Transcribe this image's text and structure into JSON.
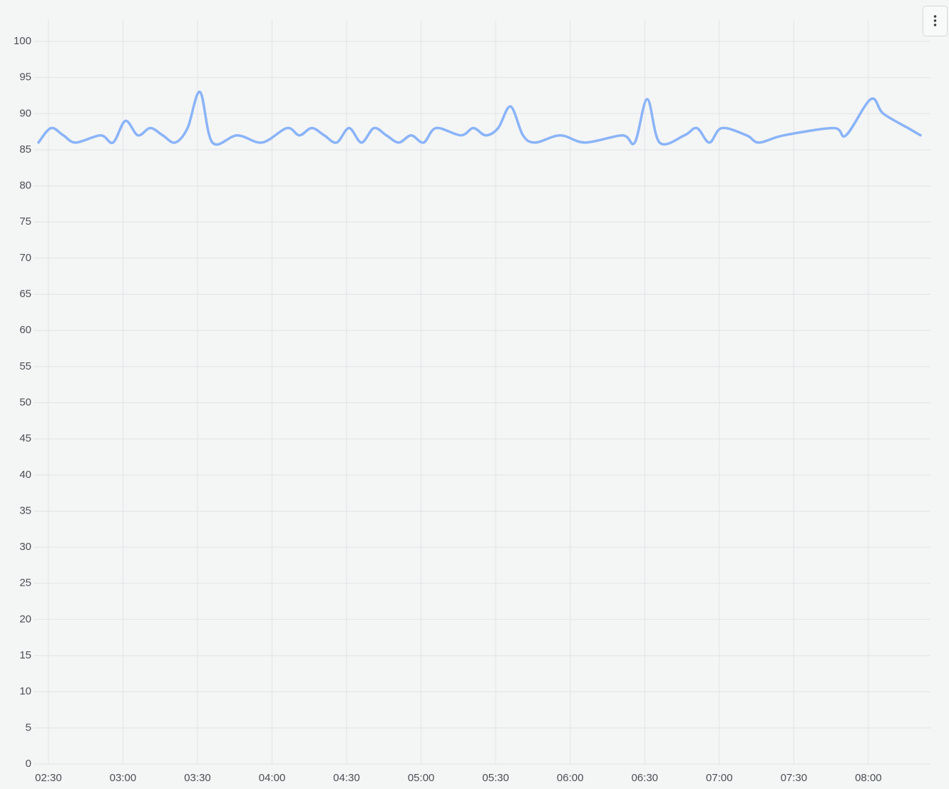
{
  "chart_data": {
    "type": "line",
    "x": [
      "02:26",
      "02:31",
      "02:36",
      "02:41",
      "02:51",
      "02:56",
      "03:01",
      "03:06",
      "03:11",
      "03:16",
      "03:21",
      "03:26",
      "03:31",
      "03:36",
      "03:46",
      "03:56",
      "04:06",
      "04:11",
      "04:16",
      "04:21",
      "04:26",
      "04:31",
      "04:36",
      "04:41",
      "04:46",
      "04:51",
      "04:56",
      "05:01",
      "05:06",
      "05:16",
      "05:21",
      "05:26",
      "05:31",
      "05:36",
      "05:41",
      "05:46",
      "05:56",
      "06:06",
      "06:21",
      "06:26",
      "06:31",
      "06:36",
      "06:46",
      "06:51",
      "06:56",
      "07:01",
      "07:11",
      "07:16",
      "07:26",
      "07:46",
      "07:51",
      "08:01",
      "08:06",
      "08:16",
      "08:21"
    ],
    "series": [
      {
        "color": "#8ab4f8",
        "values": [
          86,
          88,
          87,
          86,
          87,
          86,
          89,
          87,
          88,
          87,
          86,
          88,
          93,
          86,
          87,
          86,
          88,
          87,
          88,
          87,
          86,
          88,
          86,
          88,
          87,
          86,
          87,
          86,
          88,
          87,
          88,
          87,
          88,
          91,
          87,
          86,
          87,
          86,
          87,
          86,
          92,
          86,
          87,
          88,
          86,
          88,
          87,
          86,
          87,
          88,
          87,
          92,
          90,
          88,
          87
        ]
      }
    ],
    "xlim": [
      "02:24",
      "08:25"
    ],
    "xticks": [
      "02:30",
      "03:00",
      "03:30",
      "04:00",
      "04:30",
      "05:00",
      "05:30",
      "06:00",
      "06:30",
      "07:00",
      "07:30",
      "08:00"
    ],
    "ylim": [
      0,
      100
    ],
    "yticks": [
      0,
      5,
      10,
      15,
      20,
      25,
      30,
      35,
      40,
      45,
      50,
      55,
      60,
      65,
      70,
      75,
      80,
      85,
      90,
      95,
      100
    ],
    "grid": true
  }
}
